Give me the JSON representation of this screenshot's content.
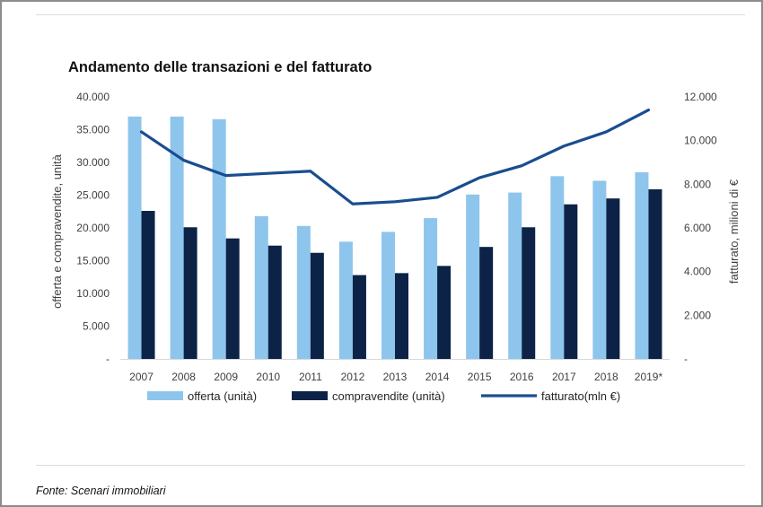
{
  "chart_data": {
    "type": "bar",
    "title": "Andamento delle transazioni  e del fatturato",
    "categories": [
      "2007",
      "2008",
      "2009",
      "2010",
      "2011",
      "2012",
      "2013",
      "2014",
      "2015",
      "2016",
      "2017",
      "2018",
      "2019*"
    ],
    "series": [
      {
        "name": "offerta (unità)",
        "type": "bar",
        "axis": "left",
        "color": "#8ec5ec",
        "values": [
          37000,
          37000,
          36600,
          21800,
          20300,
          17900,
          19400,
          21500,
          25100,
          25400,
          27900,
          27200,
          28500
        ]
      },
      {
        "name": "compravendite (unità)",
        "type": "bar",
        "axis": "left",
        "color": "#0c2347",
        "values": [
          22600,
          20100,
          18400,
          17300,
          16200,
          12800,
          13100,
          14200,
          17100,
          20100,
          23600,
          24500,
          25900
        ]
      },
      {
        "name": "fatturato(mln €)",
        "type": "line",
        "axis": "right",
        "color": "#1a4d8f",
        "values": [
          10400,
          9100,
          8400,
          8500,
          8600,
          7100,
          7200,
          7400,
          8300,
          8850,
          9750,
          10400,
          11400
        ]
      }
    ],
    "ylabel": "offerta e compravendite, unità",
    "y2label": "fatturato, milioni di €",
    "ylim": [
      0,
      40000
    ],
    "y2lim": [
      0,
      12000
    ],
    "yticks": [
      "-",
      "5.000",
      "10.000",
      "15.000",
      "20.000",
      "25.000",
      "30.000",
      "35.000",
      "40.000"
    ],
    "y2ticks": [
      "-",
      "2.000",
      "4.000",
      "6.000",
      "8.000",
      "10.000",
      "12.000"
    ],
    "grid": false,
    "legend": "bottom"
  },
  "source": "Fonte: Scenari immobiliari"
}
